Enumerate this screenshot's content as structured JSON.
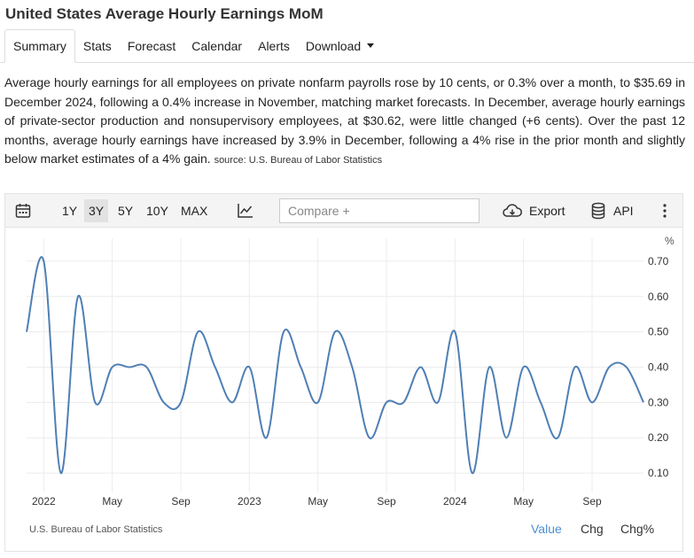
{
  "page": {
    "title": "United States Average Hourly Earnings MoM"
  },
  "tabs": [
    "Summary",
    "Stats",
    "Forecast",
    "Calendar",
    "Alerts",
    "Download"
  ],
  "description": {
    "text": "Average hourly earnings for all employees on private nonfarm payrolls rose by 10 cents, or 0.3% over a month, to $35.69 in December 2024, following a 0.4% increase in November, matching market forecasts. In December, average hourly earnings of private-sector production and nonsupervisory employees, at $30.62, were little changed (+6 cents). Over the past 12 months, average hourly earnings have increased by 3.9% in December, following a 4% rise in the prior month and slightly below market estimates of a 4% gain.",
    "source": "source: U.S. Bureau of Labor Statistics"
  },
  "toolbar": {
    "ranges": [
      "1Y",
      "3Y",
      "5Y",
      "10Y",
      "MAX"
    ],
    "selected_range": "3Y",
    "compare_placeholder": "Compare +",
    "export_label": "Export",
    "api_label": "API",
    "icons": [
      "calendar-icon",
      "line-chart-icon",
      "cloud-download-icon",
      "database-icon",
      "more-vertical-icon"
    ]
  },
  "footer": {
    "source": "U.S. Bureau of Labor Statistics",
    "buttons": [
      "Value",
      "Chg",
      "Chg%"
    ],
    "active_button": "Value"
  },
  "colors": {
    "line": "#4f7fb5",
    "active_link": "#4a8fd1"
  },
  "chart_data": {
    "type": "line",
    "unit": "%",
    "x": [
      "2021-12",
      "2022-01",
      "2022-02",
      "2022-03",
      "2022-04",
      "2022-05",
      "2022-06",
      "2022-07",
      "2022-08",
      "2022-09",
      "2022-10",
      "2022-11",
      "2022-12",
      "2023-01",
      "2023-02",
      "2023-03",
      "2023-04",
      "2023-05",
      "2023-06",
      "2023-07",
      "2023-08",
      "2023-09",
      "2023-10",
      "2023-11",
      "2023-12",
      "2024-01",
      "2024-02",
      "2024-03",
      "2024-04",
      "2024-05",
      "2024-06",
      "2024-07",
      "2024-08",
      "2024-09",
      "2024-10",
      "2024-11",
      "2024-12"
    ],
    "values": [
      0.5,
      0.7,
      0.1,
      0.6,
      0.3,
      0.4,
      0.4,
      0.4,
      0.3,
      0.3,
      0.5,
      0.4,
      0.3,
      0.4,
      0.2,
      0.5,
      0.4,
      0.3,
      0.5,
      0.4,
      0.2,
      0.3,
      0.3,
      0.4,
      0.3,
      0.5,
      0.1,
      0.4,
      0.2,
      0.4,
      0.3,
      0.2,
      0.4,
      0.3,
      0.4,
      0.4,
      0.3
    ],
    "x_ticks": [
      {
        "label": "2022",
        "x": "2022-01"
      },
      {
        "label": "May",
        "x": "2022-05"
      },
      {
        "label": "Sep",
        "x": "2022-09"
      },
      {
        "label": "2023",
        "x": "2023-01"
      },
      {
        "label": "May",
        "x": "2023-05"
      },
      {
        "label": "Sep",
        "x": "2023-09"
      },
      {
        "label": "2024",
        "x": "2024-01"
      },
      {
        "label": "May",
        "x": "2024-05"
      },
      {
        "label": "Sep",
        "x": "2024-09"
      }
    ],
    "y_ticks": [
      "0.10",
      "0.20",
      "0.30",
      "0.40",
      "0.50",
      "0.60",
      "0.70"
    ],
    "ylim": [
      0.045,
      0.765
    ],
    "grid": true,
    "legend": "none"
  }
}
